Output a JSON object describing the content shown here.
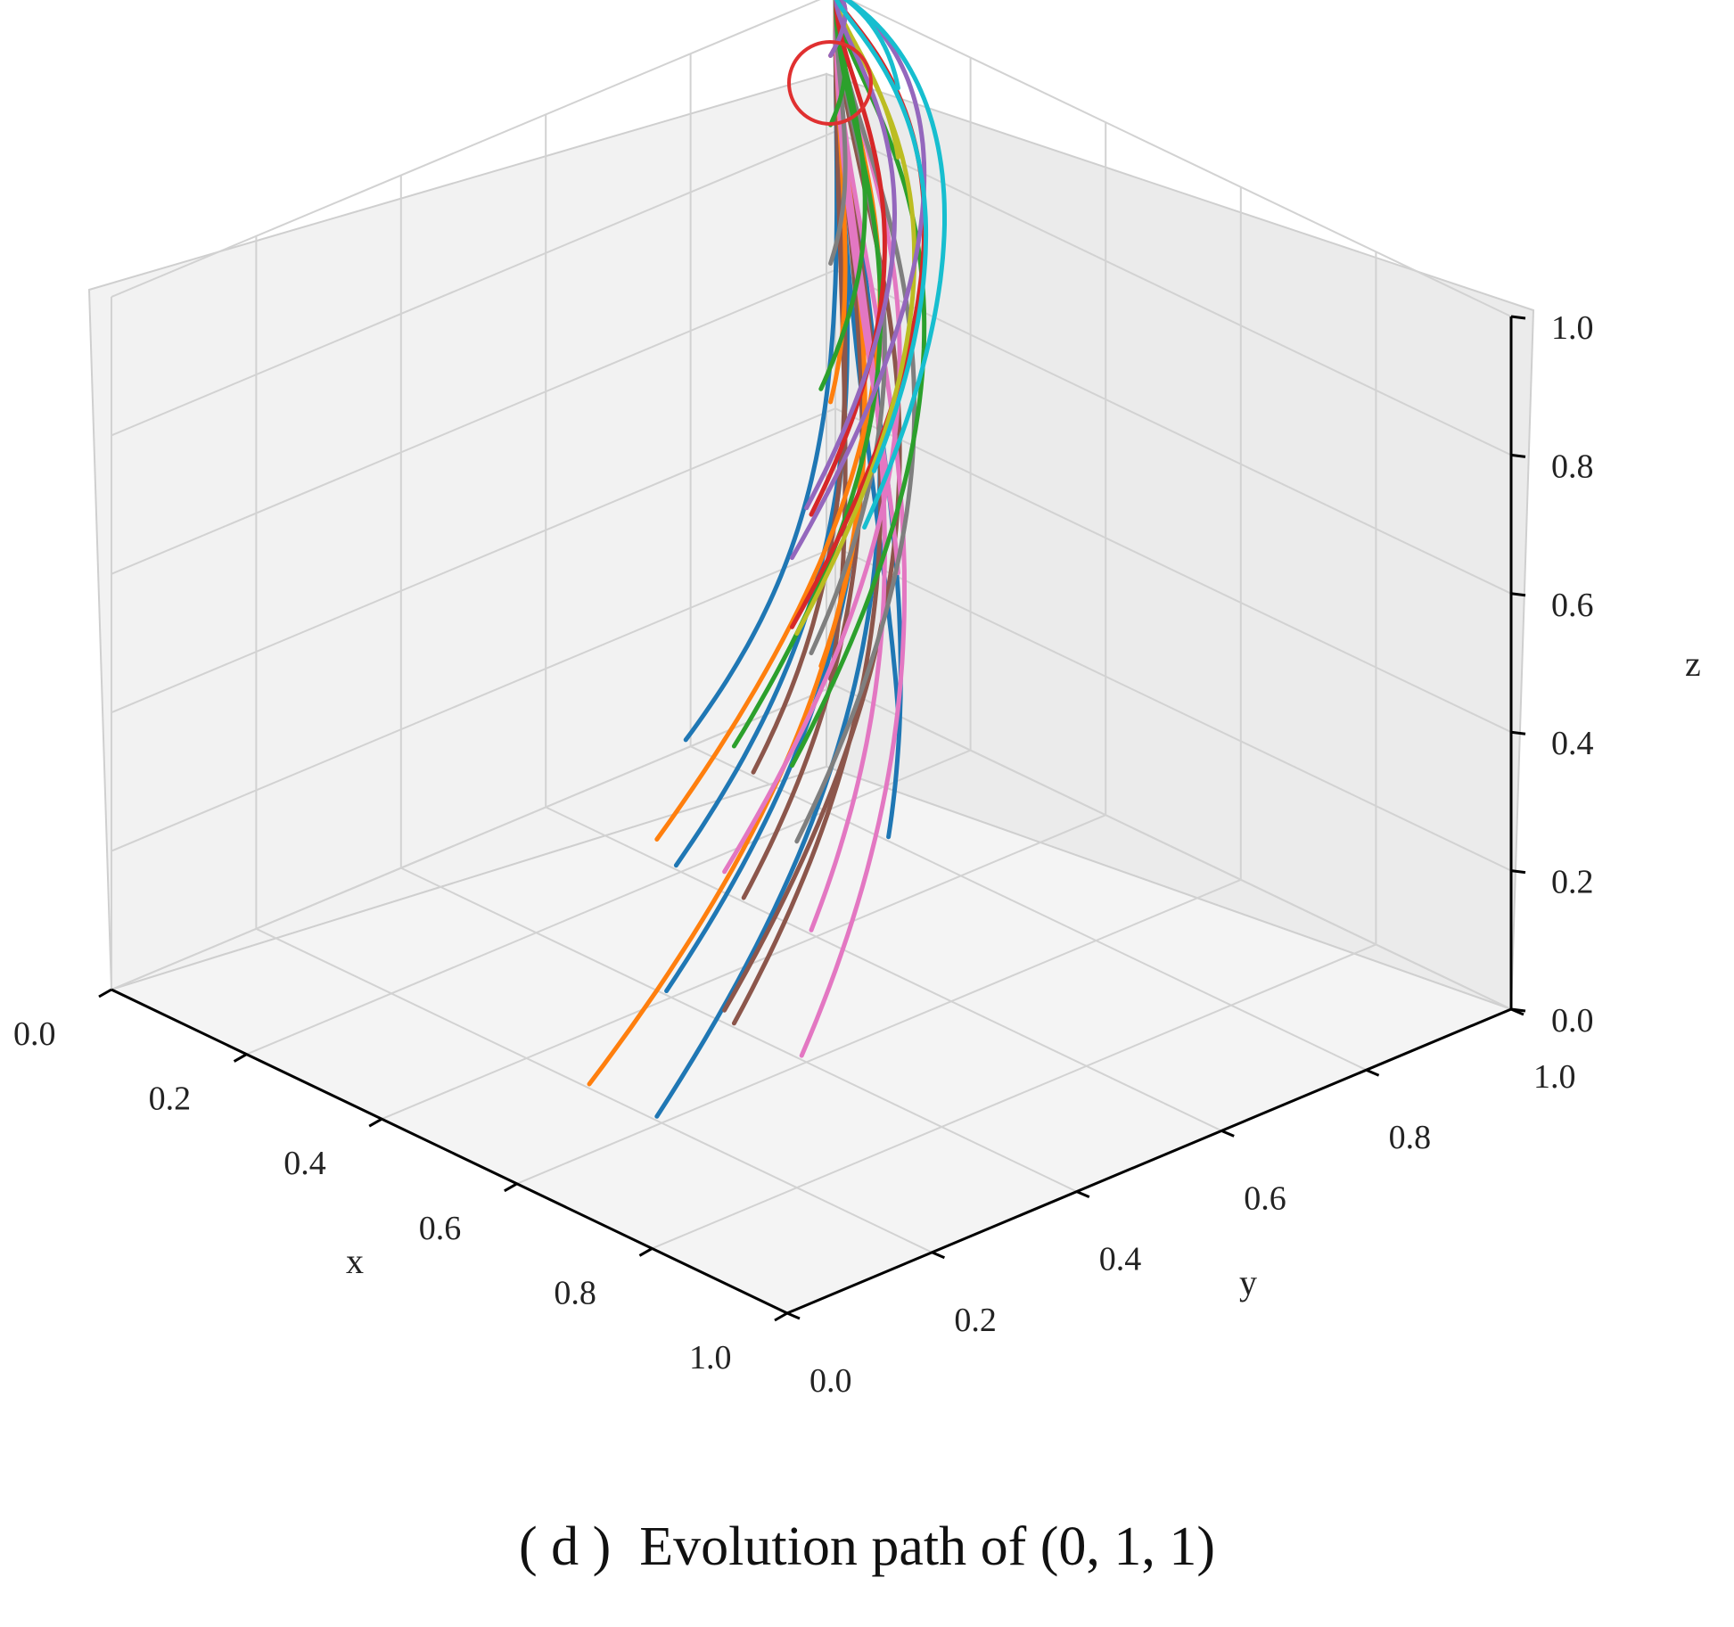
{
  "caption": {
    "tag": "( d )",
    "text": "Evolution path of (0, 1, 1)"
  },
  "chart_data": {
    "type": "line",
    "projection": "3d",
    "title": "",
    "xlabel": "x",
    "ylabel": "y",
    "zlabel": "z",
    "xlim": [
      0.0,
      1.0
    ],
    "ylim": [
      0.0,
      1.0
    ],
    "zlim": [
      0.0,
      1.0
    ],
    "xticks": [
      "0.0",
      "0.2",
      "0.4",
      "0.6",
      "0.8",
      "1.0"
    ],
    "yticks": [
      "0.0",
      "0.2",
      "0.4",
      "0.6",
      "0.8",
      "1.0"
    ],
    "zticks": [
      "0.0",
      "0.2",
      "0.4",
      "0.6",
      "0.8",
      "1.0"
    ],
    "grid": true,
    "annotation": {
      "description": "red circle marking convergence point",
      "x": 0.0,
      "y": 1.0,
      "z": 1.0,
      "color": "#e03030"
    },
    "colors": [
      "#1f77b4",
      "#ff7f0e",
      "#2ca02c",
      "#d62728",
      "#9467bd",
      "#8c564b",
      "#e377c2",
      "#7f7f7f",
      "#bcbd22",
      "#17becf"
    ],
    "series_note": "Trajectories start from a grid of initial points (x0, y0, z0) and all converge to the equilibrium (0, 1, 1).",
    "series": [
      {
        "name": "path",
        "color": "#1f77b4",
        "start": [
          0.1,
          0.9,
          0.3
        ]
      },
      {
        "name": "path",
        "color": "#1f77b4",
        "start": [
          0.1,
          0.7,
          0.1
        ]
      },
      {
        "name": "path",
        "color": "#1f77b4",
        "start": [
          0.3,
          0.5,
          0.1
        ]
      },
      {
        "name": "path",
        "color": "#1f77b4",
        "start": [
          0.5,
          0.3,
          0.1
        ]
      },
      {
        "name": "path",
        "color": "#1f77b4",
        "start": [
          0.7,
          0.1,
          0.1
        ]
      },
      {
        "name": "path",
        "color": "#1f77b4",
        "start": [
          0.2,
          0.9,
          0.1
        ]
      },
      {
        "name": "path",
        "color": "#1f77b4",
        "start": [
          0.4,
          0.7,
          0.1
        ]
      },
      {
        "name": "path",
        "color": "#8c564b",
        "start": [
          0.1,
          0.9,
          0.1
        ]
      },
      {
        "name": "path",
        "color": "#8c564b",
        "start": [
          0.2,
          0.7,
          0.1
        ]
      },
      {
        "name": "path",
        "color": "#8c564b",
        "start": [
          0.4,
          0.5,
          0.1
        ]
      },
      {
        "name": "path",
        "color": "#8c564b",
        "start": [
          0.6,
          0.3,
          0.1
        ]
      },
      {
        "name": "path",
        "color": "#8c564b",
        "start": [
          0.8,
          0.1,
          0.3
        ]
      },
      {
        "name": "path",
        "color": "#ff7f0e",
        "start": [
          0.1,
          0.9,
          0.5
        ]
      },
      {
        "name": "path",
        "color": "#ff7f0e",
        "start": [
          0.6,
          0.1,
          0.1
        ]
      },
      {
        "name": "path",
        "color": "#ff7f0e",
        "start": [
          0.7,
          0.1,
          0.5
        ]
      },
      {
        "name": "path",
        "color": "#ff7f0e",
        "start": [
          0.3,
          0.7,
          0.3
        ]
      },
      {
        "name": "path",
        "color": "#e377c2",
        "start": [
          0.2,
          0.9,
          0.3
        ]
      },
      {
        "name": "path",
        "color": "#e377c2",
        "start": [
          0.5,
          0.5,
          0.1
        ]
      },
      {
        "name": "path",
        "color": "#e377c2",
        "start": [
          0.7,
          0.3,
          0.1
        ]
      },
      {
        "name": "path",
        "color": "#e377c2",
        "start": [
          0.8,
          0.1,
          0.5
        ]
      },
      {
        "name": "path",
        "color": "#7f7f7f",
        "start": [
          0.1,
          0.9,
          0.7
        ]
      },
      {
        "name": "path",
        "color": "#7f7f7f",
        "start": [
          0.8,
          0.2,
          0.5
        ]
      },
      {
        "name": "path",
        "color": "#7f7f7f",
        "start": [
          0.5,
          0.5,
          0.5
        ]
      },
      {
        "name": "path",
        "color": "#2ca02c",
        "start": [
          0.1,
          0.9,
          0.9
        ]
      },
      {
        "name": "path",
        "color": "#2ca02c",
        "start": [
          0.6,
          0.3,
          0.5
        ]
      },
      {
        "name": "path",
        "color": "#2ca02c",
        "start": [
          0.9,
          0.1,
          0.7
        ]
      },
      {
        "name": "path",
        "color": "#2ca02c",
        "start": [
          0.3,
          0.7,
          0.7
        ]
      },
      {
        "name": "path",
        "color": "#d62728",
        "start": [
          0.1,
          0.9,
          1.0
        ]
      },
      {
        "name": "path",
        "color": "#d62728",
        "start": [
          0.9,
          0.1,
          0.9
        ]
      },
      {
        "name": "path",
        "color": "#d62728",
        "start": [
          0.5,
          0.5,
          0.7
        ]
      },
      {
        "name": "path",
        "color": "#bcbd22",
        "start": [
          0.2,
          0.9,
          0.9
        ]
      },
      {
        "name": "path",
        "color": "#bcbd22",
        "start": [
          0.8,
          0.2,
          0.8
        ]
      },
      {
        "name": "path",
        "color": "#9467bd",
        "start": [
          0.1,
          0.9,
          1.0
        ]
      },
      {
        "name": "path",
        "color": "#9467bd",
        "start": [
          0.9,
          0.1,
          1.0
        ]
      },
      {
        "name": "path",
        "color": "#9467bd",
        "start": [
          0.6,
          0.4,
          0.8
        ]
      },
      {
        "name": "path",
        "color": "#17becf",
        "start": [
          0.2,
          0.9,
          1.0
        ]
      },
      {
        "name": "path",
        "color": "#17becf",
        "start": [
          0.9,
          0.2,
          1.0
        ]
      },
      {
        "name": "path",
        "color": "#17becf",
        "start": [
          0.7,
          0.4,
          0.9
        ]
      }
    ]
  }
}
